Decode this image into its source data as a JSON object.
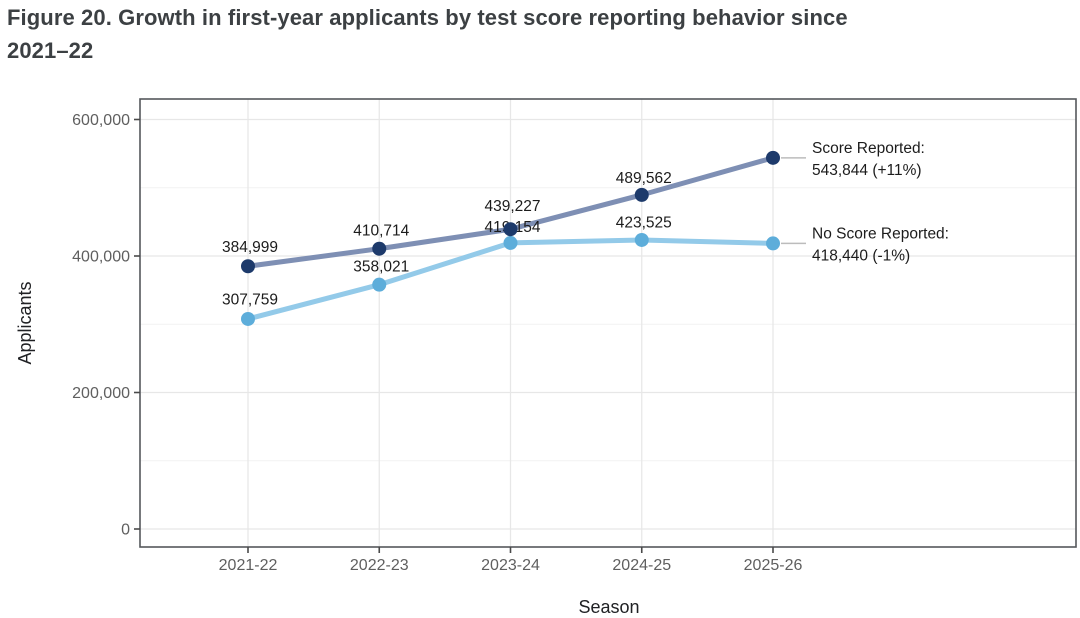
{
  "figure": {
    "title_line1": "Figure 20. Growth in first-year applicants by test score reporting behavior since",
    "title_line2": "2021–22"
  },
  "chart_data": {
    "type": "line",
    "title": "Figure 20. Growth in first-year applicants by test score reporting behavior since 2021–22",
    "xlabel": "Season",
    "ylabel": "Applicants",
    "categories": [
      "2021-22",
      "2022-23",
      "2023-24",
      "2024-25",
      "2025-26"
    ],
    "series": [
      {
        "name": "Score Reported",
        "values": [
          384999,
          410714,
          439227,
          489562,
          543844
        ],
        "point_labels": [
          "384,999",
          "410,714",
          "439,227",
          "489,562"
        ],
        "annotation_lines": [
          "Score Reported:",
          "543,844 (+11%)"
        ],
        "line_color": "#7e8fb4",
        "point_color": "#1d3a6b"
      },
      {
        "name": "No Score Reported",
        "values": [
          307759,
          358021,
          419154,
          423525,
          418440
        ],
        "point_labels": [
          "307,759",
          "358,021",
          "419,154",
          "423,525"
        ],
        "annotation_lines": [
          "No Score Reported:",
          "418,440 (-1%)"
        ],
        "line_color": "#93cae9",
        "point_color": "#5dadda"
      }
    ],
    "yticks": [
      {
        "value": 0,
        "label": "0"
      },
      {
        "value": 200000,
        "label": "200,000"
      },
      {
        "value": 400000,
        "label": "400,000"
      },
      {
        "value": 600000,
        "label": "600,000"
      }
    ],
    "minor_yticks": [
      100000,
      300000,
      500000
    ],
    "ylim": [
      0,
      630000
    ],
    "grid": true,
    "legend_position": "annotations-right-of-last-points"
  },
  "colors": {
    "title_text": "#3c4043",
    "axis_title_text": "#202124",
    "tick_text": "#5f5f5f",
    "label_text": "#1c1c1c",
    "gridline_major": "#e7e7e7",
    "gridline_minor": "#f2f2f2",
    "plot_border": "#55585c",
    "tick_mark": "#4a4a4a",
    "leader_line": "#bcbcbc",
    "background": "#ffffff"
  }
}
